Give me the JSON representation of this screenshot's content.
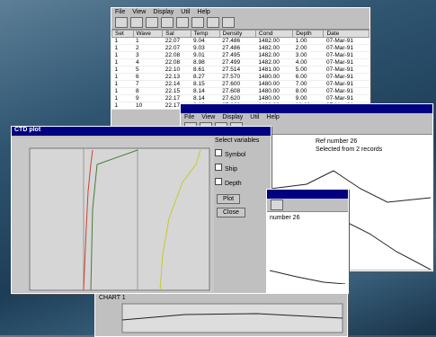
{
  "table_window": {
    "menu": [
      "File",
      "View",
      "Display",
      "Util",
      "Help"
    ],
    "columns": [
      "Set",
      "Wave",
      "Sal",
      "Temp",
      "Density",
      "Cond",
      "Depth",
      "Date"
    ],
    "rows": [
      [
        "1",
        "1",
        "22.07",
        "9.04",
        "27.486",
        "1482.00",
        "1.00",
        "07-Mar-91"
      ],
      [
        "1",
        "2",
        "22.07",
        "9.03",
        "27.486",
        "1482.00",
        "2.00",
        "07-Mar-91"
      ],
      [
        "1",
        "3",
        "22.08",
        "9.01",
        "27.495",
        "1482.00",
        "3.00",
        "07-Mar-91"
      ],
      [
        "1",
        "4",
        "22.08",
        "8.98",
        "27.499",
        "1482.00",
        "4.00",
        "07-Mar-91"
      ],
      [
        "1",
        "5",
        "22.10",
        "8.61",
        "27.514",
        "1481.00",
        "5.00",
        "07-Mar-91"
      ],
      [
        "1",
        "6",
        "22.13",
        "8.27",
        "27.570",
        "1480.00",
        "6.00",
        "07-Mar-91"
      ],
      [
        "1",
        "7",
        "22.14",
        "8.15",
        "27.600",
        "1480.00",
        "7.00",
        "07-Mar-91"
      ],
      [
        "1",
        "8",
        "22.15",
        "8.14",
        "27.608",
        "1480.00",
        "8.00",
        "07-Mar-91"
      ],
      [
        "1",
        "9",
        "22.17",
        "8.14",
        "27.620",
        "1480.00",
        "9.00",
        "07-Mar-91"
      ],
      [
        "1",
        "10",
        "22.17",
        "8.13",
        "27.622",
        "1480.00",
        "10.00",
        "07-Mar-91"
      ]
    ]
  },
  "right_window": {
    "menu": [
      "File",
      "View",
      "Display",
      "Util",
      "Help"
    ],
    "caption": "Ref number 26",
    "sub": "Selected from 2 records"
  },
  "profile_window": {
    "title": "CTD plot",
    "panel_title": "Select variables",
    "options": [
      "Symbol",
      "Ship",
      "Depth"
    ],
    "buttons": [
      "Plot",
      "Close"
    ]
  },
  "small_window": {
    "caption": "number 26"
  },
  "bottom_window": {
    "title": "CHART 1"
  }
}
